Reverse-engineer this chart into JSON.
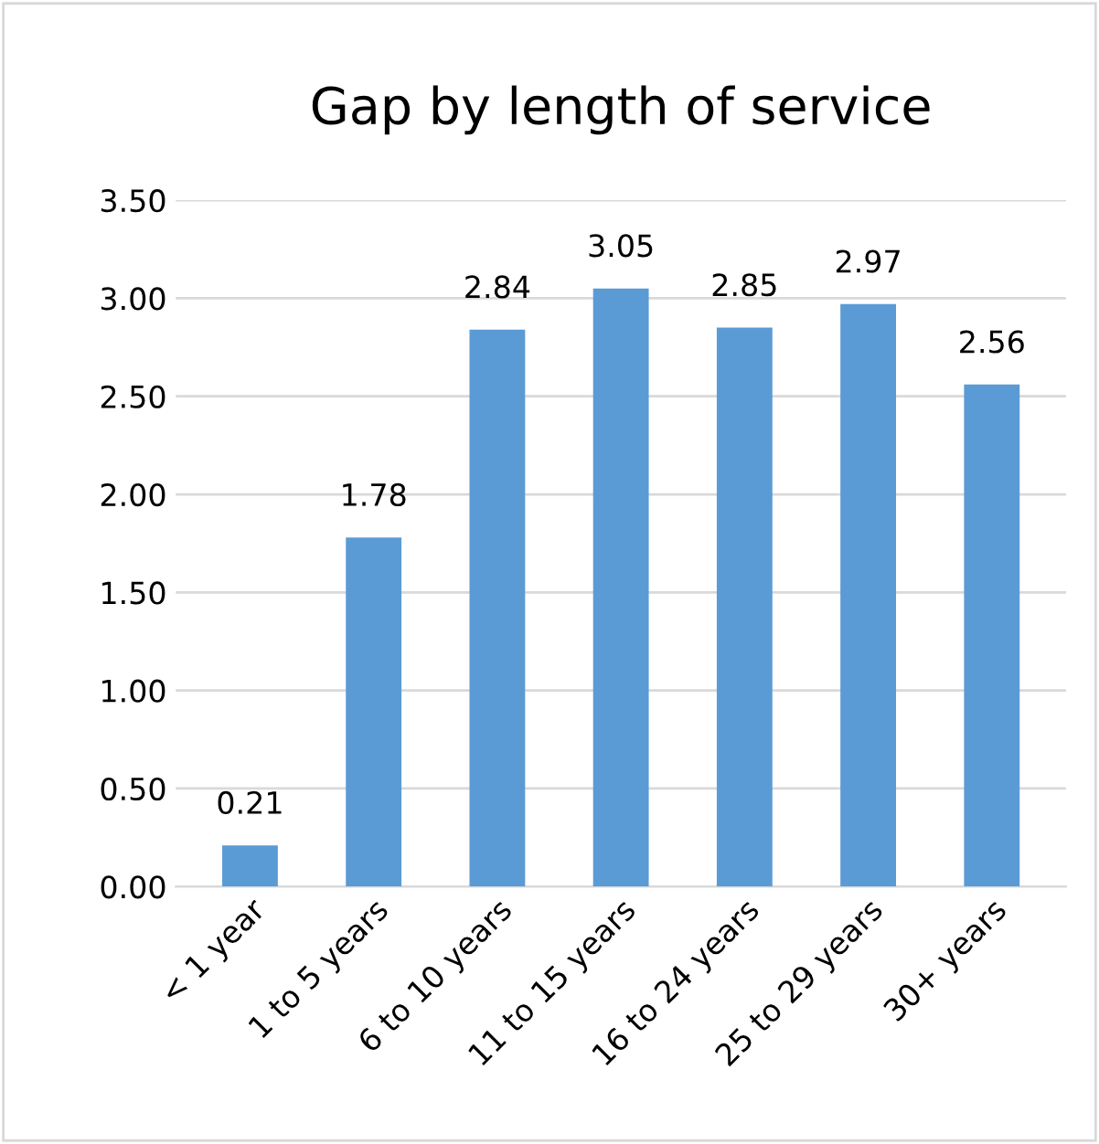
{
  "chart_data": {
    "type": "bar",
    "title": "Gap by length of service",
    "categories": [
      "< 1 year",
      "1 to 5 years",
      "6 to 10 years",
      "11 to 15 years",
      "16 to 24 years",
      "25 to 29 years",
      "30+ years"
    ],
    "values": [
      0.21,
      1.78,
      2.84,
      3.05,
      2.85,
      2.97,
      2.56
    ],
    "color": "#5b9bd5",
    "ylim": [
      0,
      3.5
    ],
    "yticks": [
      {
        "value": 0,
        "label": "0.00"
      },
      {
        "value": 0.5,
        "label": "0.50"
      },
      {
        "value": 1,
        "label": "1.00"
      },
      {
        "value": 1.5,
        "label": "1.50"
      },
      {
        "value": 2,
        "label": "2.00"
      },
      {
        "value": 2.5,
        "label": "2.50"
      },
      {
        "value": 3,
        "label": "3.00"
      },
      {
        "value": 3.5,
        "label": "3.50"
      }
    ],
    "grid": "y",
    "legend": false,
    "data_labels": true
  }
}
